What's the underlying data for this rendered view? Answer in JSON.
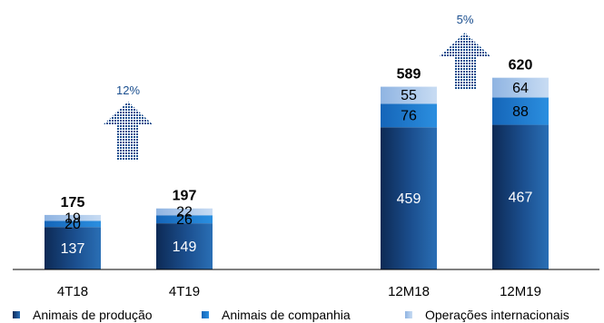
{
  "chart_data": {
    "type": "bar",
    "stacked": true,
    "categories": [
      "4T18",
      "4T19",
      "12M18",
      "12M19"
    ],
    "series": [
      {
        "name": "Animais de produção",
        "values": [
          137,
          149,
          459,
          467
        ],
        "color": "#1b4f8f",
        "label_color": "#ffffff"
      },
      {
        "name": "Animais de companhia",
        "values": [
          20,
          26,
          76,
          88
        ],
        "color": "#1d7fd1",
        "label_color": "#000000"
      },
      {
        "name": "Operações internacionais",
        "values": [
          19,
          22,
          55,
          64
        ],
        "color": "#a9c6ea",
        "label_color": "#000000"
      }
    ],
    "totals": [
      "175",
      "197",
      "589",
      "620"
    ],
    "growth": [
      {
        "label": "12%",
        "between": [
          "4T18",
          "4T19"
        ]
      },
      {
        "label": "5%",
        "between": [
          "12M18",
          "12M19"
        ]
      }
    ],
    "legend_position": "bottom",
    "grid": false,
    "colors": {
      "arrow": "#1b4f8f",
      "growth_text": "#1b4f8f",
      "axis": "#000000"
    }
  }
}
